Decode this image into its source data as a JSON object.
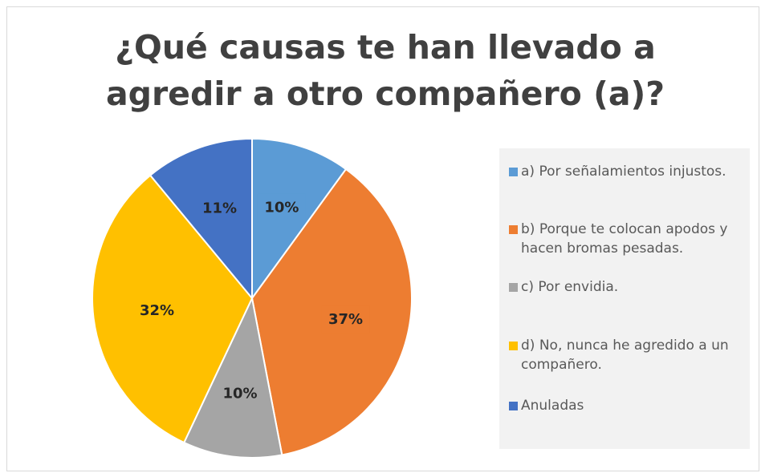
{
  "chart_data": {
    "type": "pie",
    "title": "¿Qué causas te han llevado a agredir a otro compañero (a)?",
    "categories": [
      "a) Por señalamientos injustos.",
      "b) Porque te colocan apodos y hacen bromas pesadas.",
      "c) Por envidia.",
      "d) No, nunca he agredido a un compañero.",
      "Anuladas"
    ],
    "values": [
      10,
      37,
      10,
      32,
      11
    ],
    "value_labels": [
      "10%",
      "37%",
      "10%",
      "32%",
      "11%"
    ],
    "colors": [
      "#5b9bd5",
      "#ed7d31",
      "#a5a5a5",
      "#ffc000",
      "#4472c4"
    ],
    "legend": "right"
  }
}
